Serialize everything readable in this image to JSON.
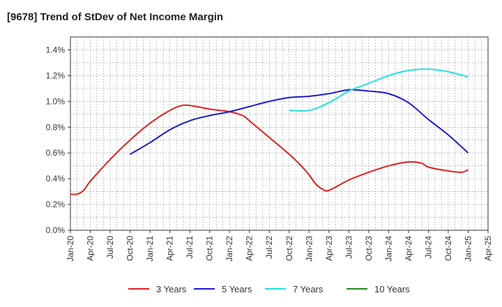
{
  "chart_data": {
    "type": "line",
    "title": "[9678]  Trend of StDev of Net Income Margin",
    "xlabel": "",
    "ylabel": "",
    "ylim": [
      0,
      1.5
    ],
    "yticks": [
      0,
      0.2,
      0.4,
      0.6,
      0.8,
      1.0,
      1.2,
      1.4
    ],
    "ytick_labels": [
      "0.0%",
      "0.2%",
      "0.4%",
      "0.6%",
      "0.8%",
      "1.0%",
      "1.2%",
      "1.4%"
    ],
    "x_ticks": [
      "Jan-20",
      "Apr-20",
      "Jul-20",
      "Oct-20",
      "Jan-21",
      "Apr-21",
      "Jul-21",
      "Oct-21",
      "Jan-22",
      "Apr-22",
      "Jul-22",
      "Oct-22",
      "Jan-23",
      "Apr-23",
      "Jul-23",
      "Oct-23",
      "Jan-24",
      "Apr-24",
      "Jul-24",
      "Oct-24",
      "Jan-25",
      "Apr-25"
    ],
    "grid": true,
    "legend_position": "bottom",
    "series": [
      {
        "name": "3 Years",
        "color": "#dd1f1f",
        "x": [
          "Jan-20",
          "Feb-20",
          "Mar-20",
          "Apr-20",
          "Jul-20",
          "Oct-20",
          "Jan-21",
          "Apr-21",
          "Jun-21",
          "Aug-21",
          "Oct-21",
          "Jan-22",
          "Mar-22",
          "Apr-22",
          "Jul-22",
          "Oct-22",
          "Dec-22",
          "Jan-23",
          "Feb-23",
          "Mar-23",
          "Apr-23",
          "Jul-23",
          "Oct-23",
          "Jan-24",
          "Apr-24",
          "Jun-24",
          "Jul-24",
          "Oct-24",
          "Dec-24",
          "Jan-25"
        ],
        "values": [
          0.28,
          0.28,
          0.31,
          0.38,
          0.55,
          0.7,
          0.83,
          0.93,
          0.97,
          0.96,
          0.94,
          0.92,
          0.89,
          0.85,
          0.72,
          0.59,
          0.49,
          0.43,
          0.36,
          0.32,
          0.31,
          0.39,
          0.45,
          0.5,
          0.53,
          0.52,
          0.49,
          0.46,
          0.45,
          0.47
        ]
      },
      {
        "name": "5 Years",
        "color": "#1a1acc",
        "x": [
          "Oct-20",
          "Jan-21",
          "Apr-21",
          "Jul-21",
          "Oct-21",
          "Jan-22",
          "Apr-22",
          "Jul-22",
          "Oct-22",
          "Jan-23",
          "Apr-23",
          "Jul-23",
          "Oct-23",
          "Jan-24",
          "Apr-24",
          "Jul-24",
          "Oct-24",
          "Jan-25"
        ],
        "values": [
          0.59,
          0.68,
          0.78,
          0.85,
          0.89,
          0.92,
          0.96,
          1.0,
          1.03,
          1.04,
          1.06,
          1.09,
          1.08,
          1.06,
          0.99,
          0.86,
          0.74,
          0.6
        ]
      },
      {
        "name": "7 Years",
        "color": "#22e0e0",
        "x": [
          "Oct-22",
          "Jan-23",
          "Apr-23",
          "Jul-23",
          "Oct-23",
          "Jan-24",
          "Apr-24",
          "Jul-24",
          "Oct-24",
          "Jan-25"
        ],
        "values": [
          0.93,
          0.93,
          0.99,
          1.08,
          1.14,
          1.2,
          1.24,
          1.25,
          1.23,
          1.19
        ]
      },
      {
        "name": "10 Years",
        "color": "#1f8c1f",
        "x": [],
        "values": []
      }
    ]
  }
}
